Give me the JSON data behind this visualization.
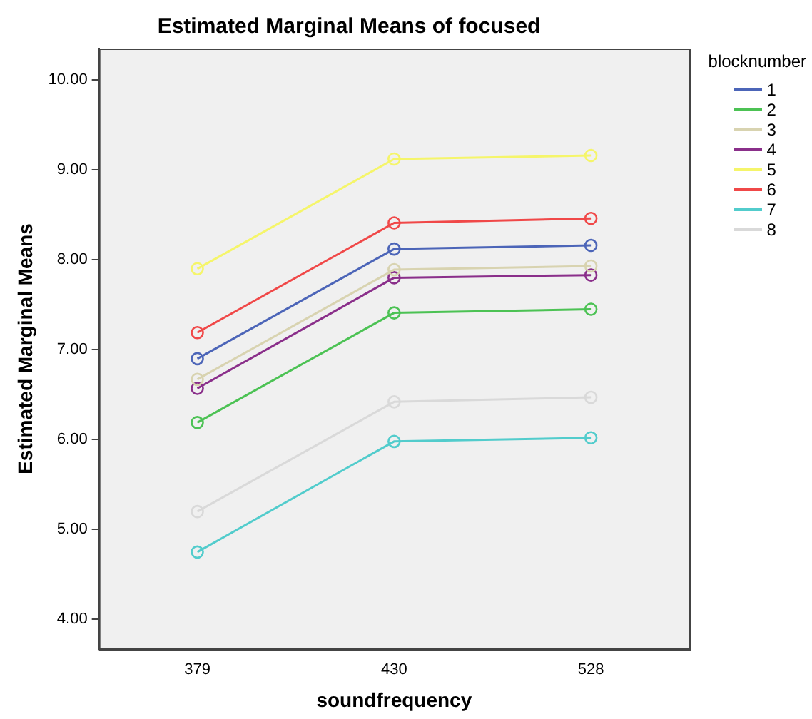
{
  "chart_data": {
    "type": "line",
    "title": "Estimated Marginal Means of focused",
    "xlabel": "soundfrequency",
    "ylabel": "Estimated Marginal Means",
    "legend_title": "blocknumber",
    "categories": [
      "379",
      "430",
      "528"
    ],
    "ylim": [
      3.67,
      10.35
    ],
    "yticks": [
      {
        "value": 4,
        "label": "4.00"
      },
      {
        "value": 5,
        "label": "5.00"
      },
      {
        "value": 6,
        "label": "6.00"
      },
      {
        "value": 7,
        "label": "7.00"
      },
      {
        "value": 8,
        "label": "8.00"
      },
      {
        "value": 9,
        "label": "9.00"
      },
      {
        "value": 10,
        "label": "10.00"
      }
    ],
    "grid": false,
    "legend": "top right",
    "marker": "circle",
    "line_style": "solid",
    "series": [
      {
        "name": "1",
        "color": "#4c65b8",
        "values": [
          6.9,
          8.12,
          8.16
        ]
      },
      {
        "name": "2",
        "color": "#4cc254",
        "values": [
          6.19,
          7.41,
          7.45
        ]
      },
      {
        "name": "3",
        "color": "#d8d3b0",
        "values": [
          6.67,
          7.89,
          7.93
        ]
      },
      {
        "name": "4",
        "color": "#8a2f8a",
        "values": [
          6.57,
          7.8,
          7.83
        ]
      },
      {
        "name": "5",
        "color": "#f5f56a",
        "values": [
          7.9,
          9.12,
          9.16
        ]
      },
      {
        "name": "6",
        "color": "#f04848",
        "values": [
          7.19,
          8.41,
          8.46
        ]
      },
      {
        "name": "7",
        "color": "#52cccc",
        "values": [
          4.75,
          5.98,
          6.02
        ]
      },
      {
        "name": "8",
        "color": "#d9d9d9",
        "values": [
          5.2,
          6.42,
          6.47
        ]
      }
    ]
  }
}
